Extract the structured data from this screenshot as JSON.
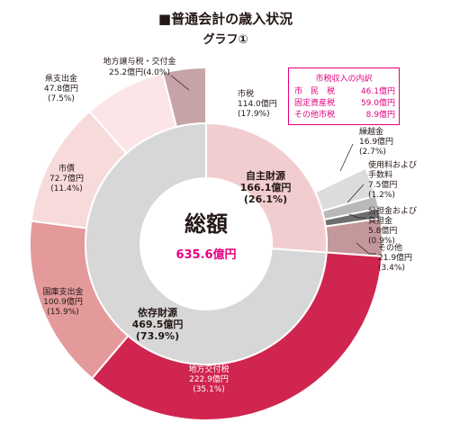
{
  "title": "■普通会計の歳入状況",
  "subtitle": "グラフ①",
  "colors": {
    "jishu": "#f2cdcf",
    "izon": "#d7d7d7",
    "shizei": "#ffffff",
    "kurikoshi": "#dcdcdc",
    "shiyoryo": "#b9b9b9",
    "buntankin": "#6e6e6e",
    "sonota": "#c4989b",
    "chihokofu": "#d0254f",
    "kokko": "#e4999b",
    "shisai": "#f7dada",
    "kenshishutsu": "#fce5e7",
    "chihojoyo": "#c7a3a8",
    "legend_border": "#e5007f"
  },
  "chart_data": {
    "type": "pie",
    "subtype": "double-donut",
    "title": "■普通会計の歳入状況",
    "subtitle": "グラフ①",
    "unit": "億円",
    "center": {
      "label": "総額",
      "value": "635.6億円",
      "value_num": 635.6
    },
    "inner_ring": [
      {
        "key": "jishu",
        "name": "自主財源",
        "value": 166.1,
        "value_text": "166.1億円",
        "percent": 26.1,
        "percent_text": "(26.1%)"
      },
      {
        "key": "izon",
        "name": "依存財源",
        "value": 469.5,
        "value_text": "469.5億円",
        "percent": 73.9,
        "percent_text": "(73.9%)"
      }
    ],
    "outer_ring": [
      {
        "key": "shizei",
        "name": "市税",
        "value": 114.0,
        "value_text": "114.0億円",
        "percent": 17.9,
        "percent_text": "(17.9%)"
      },
      {
        "key": "kurikoshi",
        "name": "繰越金",
        "value": 16.9,
        "value_text": "16.9億円",
        "percent": 2.7,
        "percent_text": "(2.7%)"
      },
      {
        "key": "shiyoryo",
        "name": "使用料および手数料",
        "name_lines": [
          "使用料および",
          "手数料"
        ],
        "value": 7.5,
        "value_text": "7.5億円",
        "percent": 1.2,
        "percent_text": "(1.2%)"
      },
      {
        "key": "buntankin",
        "name": "分担金および負担金",
        "name_lines": [
          "分担金および",
          "負担金"
        ],
        "value": 5.8,
        "value_text": "5.8億円",
        "percent": 0.9,
        "percent_text": "(0.9%)"
      },
      {
        "key": "sonota",
        "name": "その他",
        "value": 21.9,
        "value_text": "21.9億円",
        "percent": 3.4,
        "percent_text": "(3.4%)"
      },
      {
        "key": "chihokofu",
        "name": "地方交付税",
        "value": 222.9,
        "value_text": "222.9億円",
        "percent": 35.1,
        "percent_text": "(35.1%)"
      },
      {
        "key": "kokko",
        "name": "国庫支出金",
        "value": 100.9,
        "value_text": "100.9億円",
        "percent": 15.9,
        "percent_text": "(15.9%)"
      },
      {
        "key": "shisai",
        "name": "市債",
        "value": 72.7,
        "value_text": "72.7億円",
        "percent": 11.4,
        "percent_text": "(11.4%)"
      },
      {
        "key": "kenshishutsu",
        "name": "県支出金",
        "value": 47.8,
        "value_text": "47.8億円",
        "percent": 7.5,
        "percent_text": "(7.5%)"
      },
      {
        "key": "chihojoyo",
        "name": "地方譲与税・交付金",
        "value": 25.2,
        "value_text": "25.2億円",
        "percent": 4.0,
        "percent_text": "(4.0%)"
      }
    ],
    "shizei_breakdown": {
      "title": "市税収入の内訳",
      "items": [
        {
          "name": "市　民　税",
          "value": 46.1,
          "value_text": "46.1億円"
        },
        {
          "name": "固定資産税",
          "value": 59.0,
          "value_text": "59.0億円"
        },
        {
          "name": "その他市税",
          "value": 8.9,
          "value_text": "8.9億円"
        }
      ]
    }
  }
}
